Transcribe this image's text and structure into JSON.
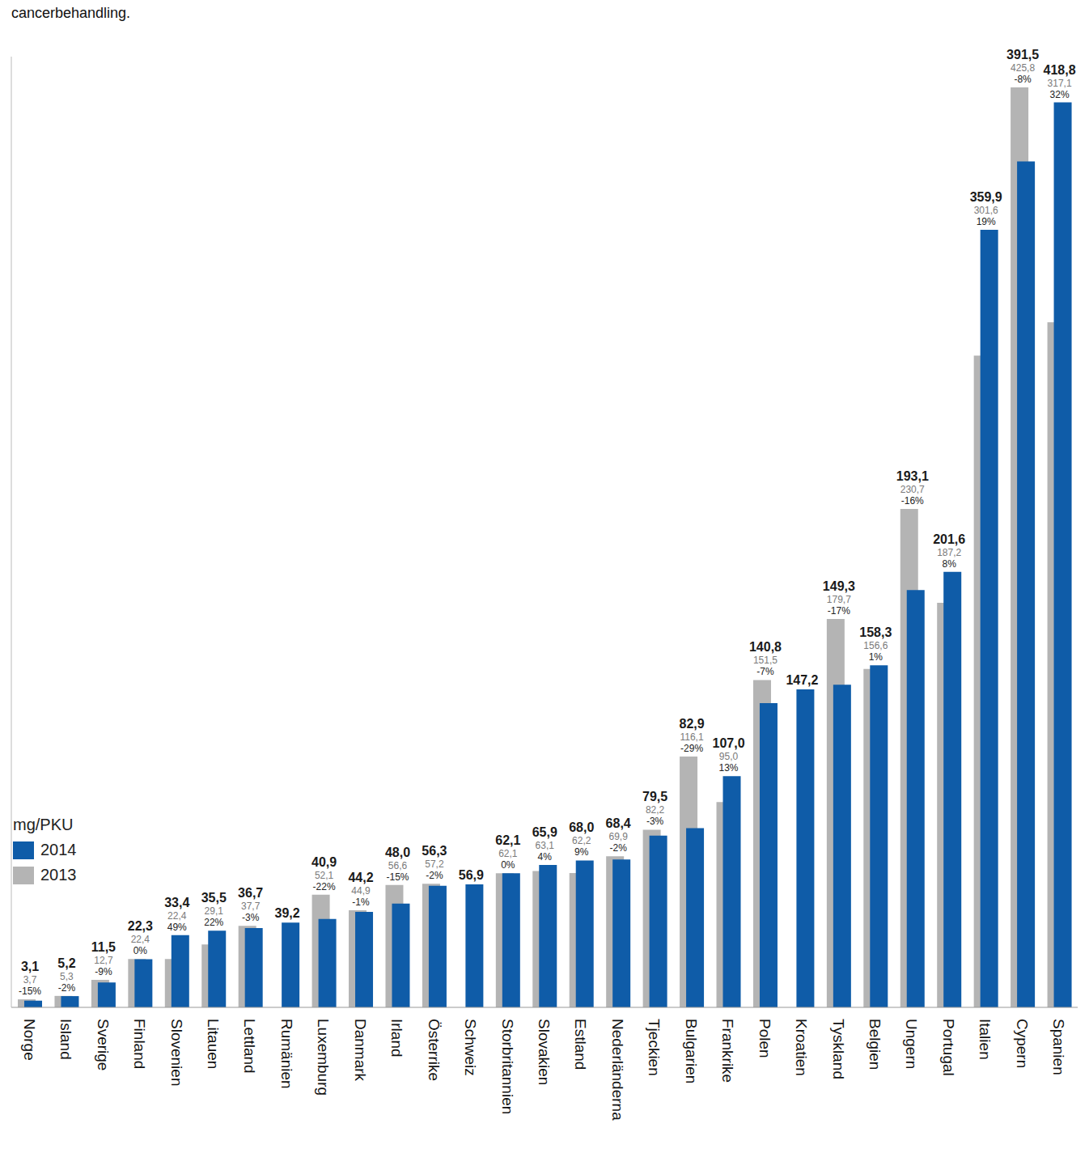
{
  "chart_data": {
    "type": "bar",
    "title": "cancerbehandling.",
    "y_label": "mg/PKU",
    "categories": [
      "Norge",
      "Island",
      "Sverige",
      "Finland",
      "Slovenien",
      "Litauen",
      "Lettland",
      "Rumänien",
      "Luxemburg",
      "Danmark",
      "Irland",
      "Österrike",
      "Schweiz",
      "Storbritannien",
      "Slovakien",
      "Estland",
      "Nederländerna",
      "Tjeckien",
      "Bulgarien",
      "Frankrike",
      "Polen",
      "Kroatien",
      "Tyskland",
      "Belgien",
      "Ungern",
      "Portugal",
      "Italien",
      "Cypern",
      "Spanien"
    ],
    "series": [
      {
        "name": "2014",
        "color": "#0f5ca8",
        "values": [
          3.1,
          5.2,
          11.5,
          22.3,
          33.4,
          35.5,
          36.7,
          39.2,
          40.9,
          44.2,
          48.0,
          56.3,
          56.9,
          62.1,
          65.9,
          68.0,
          68.4,
          79.5,
          82.9,
          107.0,
          140.8,
          147.2,
          149.3,
          158.3,
          193.1,
          201.6,
          359.9,
          391.5,
          418.8
        ],
        "value_labels": [
          "3,1",
          "5,2",
          "11,5",
          "22,3",
          "33,4",
          "35,5",
          "36,7",
          "39,2",
          "40,9",
          "44,2",
          "48,0",
          "56,3",
          "56,9",
          "62,1",
          "65,9",
          "68,0",
          "68,4",
          "79,5",
          "82,9",
          "107,0",
          "140,8",
          "147,2",
          "149,3",
          "158,3",
          "193,1",
          "201,6",
          "359,9",
          "391,5",
          "418,8"
        ]
      },
      {
        "name": "2013",
        "color": "#b4b4b4",
        "values": [
          3.7,
          5.3,
          12.7,
          22.4,
          22.4,
          29.1,
          37.7,
          null,
          52.1,
          44.9,
          56.6,
          57.2,
          null,
          62.1,
          63.1,
          62.2,
          69.9,
          82.2,
          116.1,
          95.0,
          151.5,
          null,
          179.7,
          156.6,
          230.7,
          187.2,
          301.6,
          425.8,
          317.1
        ],
        "value_labels": [
          "3,7",
          "5,3",
          "12,7",
          "22,4",
          "22,4",
          "29,1",
          "37,7",
          null,
          "52,1",
          "44,9",
          "56,6",
          "57,2",
          null,
          "62,1",
          "63,1",
          "62,2",
          "69,9",
          "82,2",
          "116,1",
          "95,0",
          "151,5",
          null,
          "179,7",
          "156,6",
          "230,7",
          "187,2",
          "301,6",
          "425,8",
          "317,1"
        ]
      }
    ],
    "change_labels": [
      "-15%",
      "-2%",
      "-9%",
      "0%",
      "49%",
      "22%",
      "-3%",
      null,
      "-22%",
      "-1%",
      "-15%",
      "-2%",
      null,
      "0%",
      "4%",
      "9%",
      "-2%",
      "-3%",
      "-29%",
      "13%",
      "-7%",
      null,
      "-17%",
      "1%",
      "-16%",
      "8%",
      "19%",
      "-8%",
      "32%"
    ],
    "ylim": [
      0,
      440
    ],
    "tick_labels": "x",
    "data_labels": true,
    "legend": "lower left"
  }
}
